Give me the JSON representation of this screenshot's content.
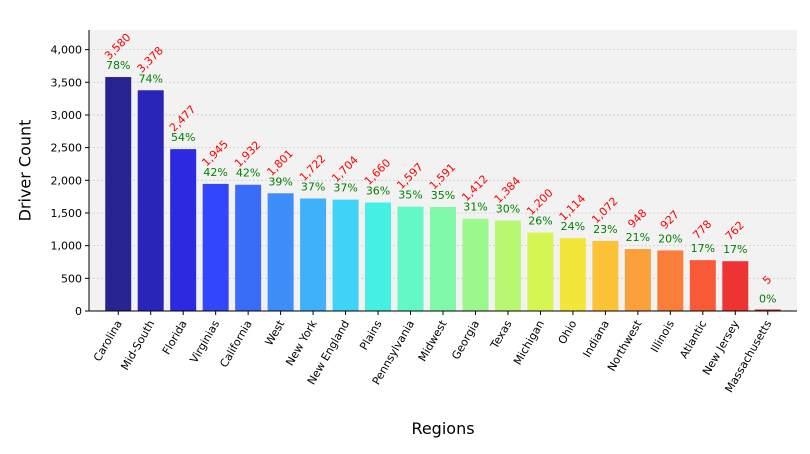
{
  "chart_data": {
    "type": "bar",
    "xlabel": "Regions",
    "ylabel": "Driver Count",
    "ylim": [
      0,
      4300
    ],
    "yticks": [
      0,
      500,
      1000,
      1500,
      2000,
      2500,
      3000,
      3500,
      4000
    ],
    "ytick_labels": [
      "0",
      "500",
      "1,000",
      "1,500",
      "2,000",
      "2,500",
      "3,000",
      "3,500",
      "4,000"
    ],
    "grid": true,
    "categories": [
      "Carolina",
      "Mid-South",
      "Florida",
      "Virginias",
      "California",
      "West",
      "New York",
      "New England",
      "Plains",
      "Pennsylvania",
      "Midwest",
      "Georgia",
      "Texas",
      "Michigan",
      "Ohio",
      "Indiana",
      "Northwest",
      "Illinois",
      "Atlantic",
      "New Jersey",
      "Massachusetts"
    ],
    "values": [
      3580,
      3378,
      2477,
      1945,
      1932,
      1801,
      1722,
      1704,
      1660,
      1597,
      1591,
      1412,
      1384,
      1200,
      1114,
      1072,
      948,
      927,
      778,
      762,
      5
    ],
    "value_labels": [
      "3,580",
      "3,378",
      "2,477",
      "1,945",
      "1,932",
      "1,801",
      "1,722",
      "1,704",
      "1,660",
      "1,597",
      "1,591",
      "1,412",
      "1,384",
      "1,200",
      "1,114",
      "1,072",
      "948",
      "927",
      "778",
      "762",
      "5"
    ],
    "percent_labels": [
      "78%",
      "74%",
      "54%",
      "42%",
      "42%",
      "39%",
      "37%",
      "37%",
      "36%",
      "35%",
      "35%",
      "31%",
      "30%",
      "26%",
      "24%",
      "23%",
      "21%",
      "20%",
      "17%",
      "17%",
      "0%"
    ],
    "colors": {
      "bars": [
        "#27238f",
        "#2a25b8",
        "#2b2ae0",
        "#3246fa",
        "#3a6cfa",
        "#3e8dfa",
        "#3fb0fa",
        "#3fd3f7",
        "#45f0e2",
        "#63f8c6",
        "#7ff8a9",
        "#9bf98c",
        "#b8f870",
        "#d5f652",
        "#f2e63a",
        "#fcc338",
        "#fca03b",
        "#fb7d3a",
        "#f85a37",
        "#ee3432",
        "#cf1b1f"
      ],
      "value_label": "#ff0000",
      "percent_label": "#008000",
      "plot_background": "#f2f2f2",
      "grid": "#cccccc"
    }
  }
}
